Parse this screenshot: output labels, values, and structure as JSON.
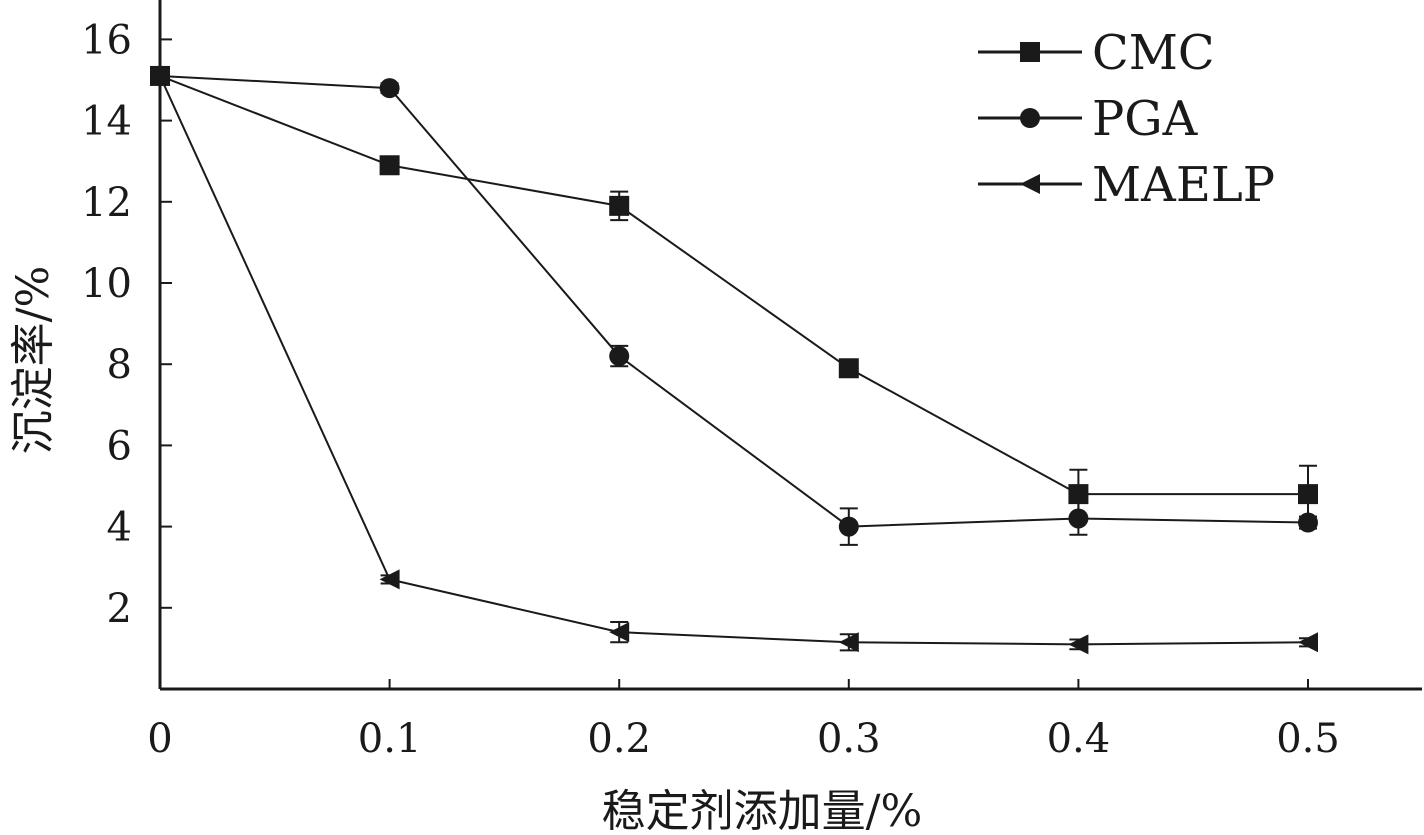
{
  "chart_data": {
    "type": "line",
    "xlabel": "稳定剂添加量/%",
    "ylabel": "沉淀率/%",
    "x": [
      0,
      0.1,
      0.2,
      0.3,
      0.4,
      0.5
    ],
    "x_tick_labels": [
      "0",
      "0.1",
      "0.2",
      "0.3",
      "0.4",
      "0.5"
    ],
    "y_ticks": [
      2,
      4,
      6,
      8,
      10,
      12,
      14,
      16
    ],
    "y_tick_labels": [
      "2",
      "4",
      "6",
      "8",
      "10",
      "12",
      "14",
      "16"
    ],
    "xlim": [
      0,
      0.55
    ],
    "ylim": [
      0,
      17
    ],
    "grid": false,
    "legend_position": "top-right",
    "series": [
      {
        "name": "CMC",
        "marker": "square",
        "values": [
          15.1,
          12.9,
          11.9,
          7.9,
          4.8,
          4.8
        ],
        "errors": [
          0.2,
          0.15,
          0.35,
          0.15,
          0.6,
          0.7
        ]
      },
      {
        "name": "PGA",
        "marker": "circle",
        "values": [
          15.1,
          14.8,
          8.2,
          4.0,
          4.2,
          4.1
        ],
        "errors": [
          0.2,
          0.12,
          0.25,
          0.45,
          0.4,
          0.15
        ]
      },
      {
        "name": "MAELP",
        "marker": "triangle-left",
        "values": [
          15.1,
          2.7,
          1.4,
          1.15,
          1.1,
          1.15
        ],
        "errors": [
          0.2,
          0.1,
          0.25,
          0.2,
          0.12,
          0.1
        ]
      }
    ],
    "colors": {
      "line": "#1a1a1a",
      "background": "#ffffff"
    }
  }
}
